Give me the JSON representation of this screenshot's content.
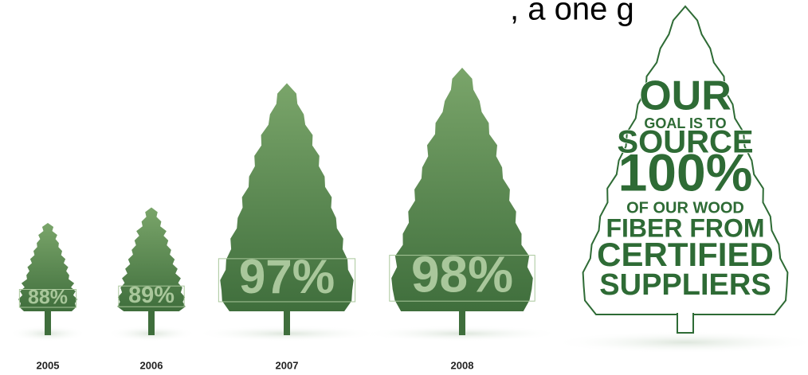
{
  "chart_data": {
    "type": "pictograph",
    "title": ", a one g",
    "categories": [
      "2005",
      "2006",
      "2007",
      "2008"
    ],
    "values": [
      88,
      89,
      97,
      98
    ],
    "value_labels": [
      "88%",
      "89%",
      "97%",
      "98%"
    ],
    "color": "#4c7d45",
    "goal": {
      "lines": [
        "OUR",
        "GOAL IS TO",
        "SOURCE",
        "100%",
        "OF OUR WOOD",
        "FIBER FROM",
        "CERTIFIED",
        "SUPPLIERS"
      ],
      "color": "#2e6b35"
    }
  }
}
